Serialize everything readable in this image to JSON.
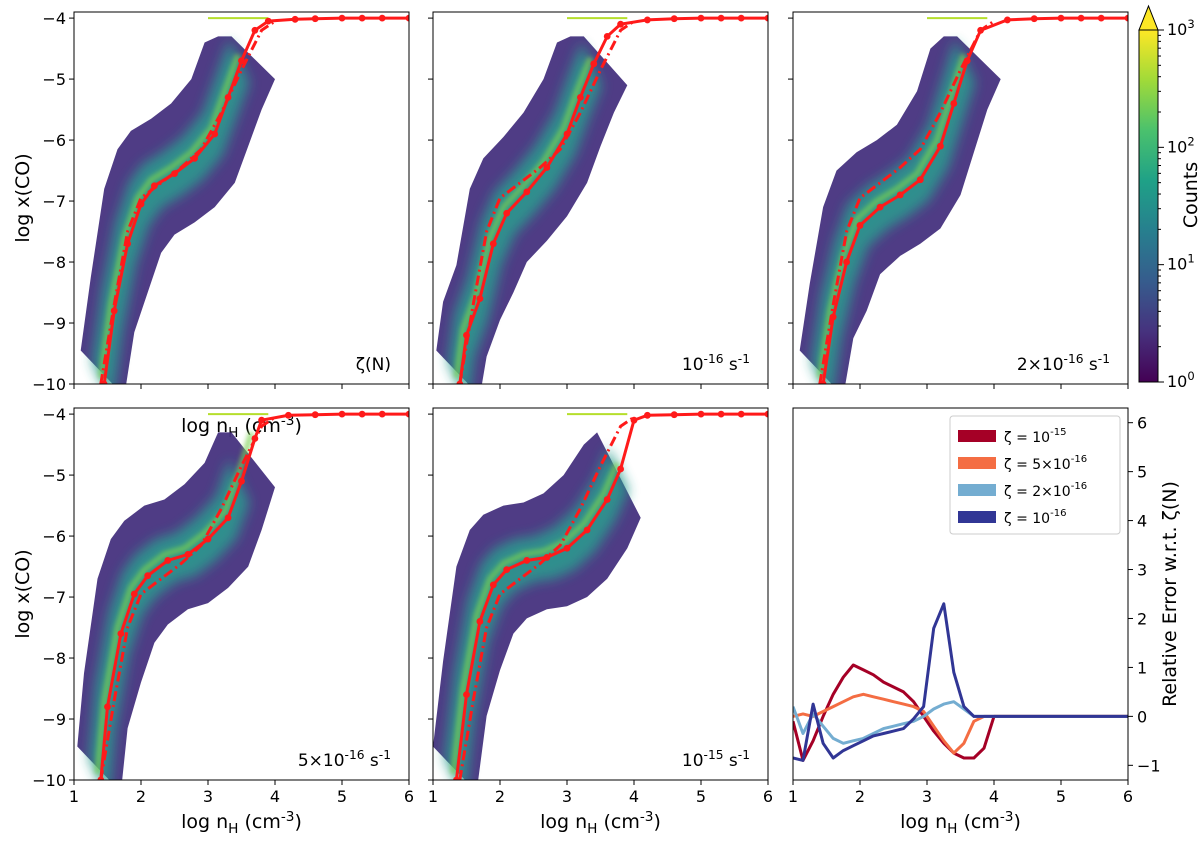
{
  "figure": {
    "colorbar": {
      "label": "Counts",
      "ticks": [
        {
          "value": 1,
          "label": "10^0"
        },
        {
          "value": 10,
          "label": "10^1"
        },
        {
          "value": 100,
          "label": "10^2"
        },
        {
          "value": 1000,
          "label": "10^3"
        }
      ],
      "colormap": [
        "#440154",
        "#46327e",
        "#365c8d",
        "#277f8e",
        "#1fa187",
        "#4ac16d",
        "#a0da39",
        "#fde725"
      ],
      "extend_color": "#fde725"
    },
    "colors": {
      "red": "#ff1a1a",
      "zeta_1e-15": "#a50026",
      "zeta_5e-16": "#f46d43",
      "zeta_2e-16": "#74add1",
      "zeta_1e-16": "#313695"
    }
  },
  "chart_data": [
    {
      "type": "heatmap",
      "panel": "top-left",
      "annotation": "ζ(N)",
      "xlabel": "log n_H (cm^-3)",
      "ylabel": "log x(CO)",
      "xlim": [
        1,
        6
      ],
      "ylim": [
        -10,
        -3.9
      ],
      "xticks": [
        1,
        2,
        3,
        4,
        5,
        6
      ],
      "yticks": [
        -10,
        -9,
        -8,
        -7,
        -6,
        -5,
        -4
      ],
      "series": [
        {
          "name": "solid",
          "style": "solid",
          "x": [
            1.45,
            1.6,
            1.8,
            2.0,
            2.2,
            2.5,
            2.8,
            3.1,
            3.3,
            3.5,
            3.7,
            3.9,
            4.3,
            4.6,
            5.0,
            5.3,
            5.6,
            6.0
          ],
          "y": [
            -10,
            -8.8,
            -7.7,
            -7.05,
            -6.75,
            -6.55,
            -6.3,
            -5.9,
            -5.3,
            -4.7,
            -4.2,
            -4.05,
            -4.02,
            -4.01,
            -4.0,
            -4.0,
            -4.0,
            -4.0
          ]
        },
        {
          "name": "dashdot",
          "style": "dashdot",
          "x": [
            1.4,
            1.6,
            1.8,
            2.0,
            2.3,
            2.6,
            2.9,
            3.2,
            3.5,
            3.8,
            4.0
          ],
          "y": [
            -10,
            -8.7,
            -7.5,
            -6.95,
            -6.7,
            -6.45,
            -6.15,
            -5.55,
            -4.85,
            -4.2,
            -4.05
          ]
        }
      ]
    },
    {
      "type": "heatmap",
      "panel": "top-middle",
      "annotation": "10^-16 s^-1",
      "xlabel": "",
      "ylabel": "",
      "xlim": [
        1,
        6
      ],
      "ylim": [
        -10,
        -3.9
      ],
      "xticks": [
        1,
        2,
        3,
        4,
        5,
        6
      ],
      "yticks": [
        -10,
        -9,
        -8,
        -7,
        -6,
        -5,
        -4
      ],
      "series": [
        {
          "name": "solid",
          "style": "solid",
          "x": [
            1.4,
            1.5,
            1.7,
            1.9,
            2.1,
            2.4,
            2.7,
            3.0,
            3.2,
            3.4,
            3.6,
            3.8,
            4.2,
            4.6,
            5.0,
            5.3,
            5.6,
            6.0
          ],
          "y": [
            -10,
            -9.2,
            -8.6,
            -7.7,
            -7.2,
            -6.85,
            -6.45,
            -5.9,
            -5.3,
            -4.75,
            -4.3,
            -4.1,
            -4.03,
            -4.01,
            -4.0,
            -4.0,
            -4.0,
            -4.0
          ]
        },
        {
          "name": "dashdot",
          "style": "dashdot",
          "x": [
            1.4,
            1.6,
            1.8,
            2.0,
            2.3,
            2.6,
            2.9,
            3.2,
            3.5,
            3.8,
            4.0
          ],
          "y": [
            -10,
            -8.7,
            -7.5,
            -6.95,
            -6.7,
            -6.45,
            -6.15,
            -5.55,
            -4.85,
            -4.2,
            -4.05
          ]
        }
      ]
    },
    {
      "type": "heatmap",
      "panel": "top-right",
      "annotation": "2×10^-16 s^-1",
      "xlabel": "",
      "ylabel": "",
      "xlim": [
        1,
        6
      ],
      "ylim": [
        -10,
        -3.9
      ],
      "xticks": [
        1,
        2,
        3,
        4,
        5,
        6
      ],
      "yticks": [
        -10,
        -9,
        -8,
        -7,
        -6,
        -5,
        -4
      ],
      "series": [
        {
          "name": "solid",
          "style": "solid",
          "x": [
            1.45,
            1.6,
            1.8,
            2.0,
            2.3,
            2.6,
            2.9,
            3.2,
            3.4,
            3.6,
            3.8,
            4.2,
            4.6,
            5.0,
            5.3,
            5.6,
            6.0
          ],
          "y": [
            -10,
            -8.9,
            -8.0,
            -7.4,
            -7.1,
            -6.9,
            -6.65,
            -6.1,
            -5.4,
            -4.7,
            -4.2,
            -4.03,
            -4.01,
            -4.0,
            -4.0,
            -4.0,
            -4.0
          ]
        },
        {
          "name": "dashdot",
          "style": "dashdot",
          "x": [
            1.4,
            1.6,
            1.8,
            2.0,
            2.3,
            2.6,
            2.9,
            3.2,
            3.5,
            3.8,
            4.0
          ],
          "y": [
            -10,
            -8.7,
            -7.5,
            -6.95,
            -6.7,
            -6.45,
            -6.15,
            -5.55,
            -4.85,
            -4.2,
            -4.05
          ]
        }
      ]
    },
    {
      "type": "heatmap",
      "panel": "bottom-left",
      "annotation": "5×10^-16 s^-1",
      "xlabel": "log n_H (cm^-3)",
      "ylabel": "log x(CO)",
      "xlim": [
        1,
        6
      ],
      "ylim": [
        -10,
        -3.9
      ],
      "xticks": [
        1,
        2,
        3,
        4,
        5,
        6
      ],
      "yticks": [
        -10,
        -9,
        -8,
        -7,
        -6,
        -5,
        -4
      ],
      "series": [
        {
          "name": "solid",
          "style": "solid",
          "x": [
            1.4,
            1.5,
            1.7,
            1.9,
            2.1,
            2.4,
            2.7,
            3.0,
            3.3,
            3.5,
            3.7,
            3.8,
            4.2,
            4.6,
            5.0,
            5.3,
            5.6,
            6.0
          ],
          "y": [
            -10,
            -8.8,
            -7.6,
            -6.95,
            -6.65,
            -6.4,
            -6.3,
            -6.05,
            -5.7,
            -5.1,
            -4.4,
            -4.1,
            -4.02,
            -4.01,
            -4.0,
            -4.0,
            -4.0,
            -4.0
          ]
        },
        {
          "name": "dashdot",
          "style": "dashdot",
          "x": [
            1.4,
            1.6,
            1.8,
            2.0,
            2.3,
            2.6,
            2.9,
            3.2,
            3.5,
            3.8,
            4.0
          ],
          "y": [
            -10,
            -8.7,
            -7.5,
            -6.95,
            -6.7,
            -6.45,
            -6.15,
            -5.55,
            -4.85,
            -4.2,
            -4.05
          ]
        }
      ]
    },
    {
      "type": "heatmap",
      "panel": "bottom-middle",
      "annotation": "10^-15 s^-1",
      "xlabel": "log n_H (cm^-3)",
      "ylabel": "",
      "xlim": [
        1,
        6
      ],
      "ylim": [
        -10,
        -3.9
      ],
      "xticks": [
        1,
        2,
        3,
        4,
        5,
        6
      ],
      "yticks": [
        -10,
        -9,
        -8,
        -7,
        -6,
        -5,
        -4
      ],
      "series": [
        {
          "name": "solid",
          "style": "solid",
          "x": [
            1.35,
            1.5,
            1.7,
            1.9,
            2.1,
            2.4,
            2.7,
            3.0,
            3.3,
            3.6,
            3.8,
            4.0,
            4.2,
            4.6,
            5.0,
            5.3,
            5.6,
            6.0
          ],
          "y": [
            -10,
            -8.6,
            -7.4,
            -6.8,
            -6.55,
            -6.4,
            -6.35,
            -6.2,
            -5.9,
            -5.4,
            -4.9,
            -4.1,
            -4.02,
            -4.01,
            -4.0,
            -4.0,
            -4.0,
            -4.0
          ]
        },
        {
          "name": "dashdot",
          "style": "dashdot",
          "x": [
            1.4,
            1.6,
            1.8,
            2.0,
            2.3,
            2.6,
            2.9,
            3.2,
            3.5,
            3.8,
            4.0
          ],
          "y": [
            -10,
            -8.7,
            -7.5,
            -6.95,
            -6.7,
            -6.45,
            -6.15,
            -5.55,
            -4.85,
            -4.2,
            -4.05
          ]
        }
      ]
    },
    {
      "type": "line",
      "panel": "bottom-right",
      "xlabel": "log n_H (cm^-3)",
      "ylabel": "Relative Error w.r.t. ζ(N)",
      "xlim": [
        1,
        6
      ],
      "ylim": [
        -1.3,
        6.3
      ],
      "xticks": [
        1,
        2,
        3,
        4,
        5,
        6
      ],
      "yticks": [
        -1,
        0,
        1,
        2,
        3,
        4,
        5,
        6
      ],
      "legend": "top-right",
      "x": [
        1.0,
        1.15,
        1.3,
        1.45,
        1.6,
        1.75,
        1.9,
        2.05,
        2.2,
        2.35,
        2.5,
        2.65,
        2.8,
        2.95,
        3.1,
        3.25,
        3.4,
        3.55,
        3.7,
        3.85,
        4.0,
        4.2,
        4.5,
        5.0,
        5.5,
        6.0
      ],
      "series": [
        {
          "name": "ζ = 10^-15",
          "color_key": "zeta_1e-15",
          "values": [
            -0.1,
            -0.9,
            -0.5,
            0.0,
            0.45,
            0.8,
            1.05,
            0.95,
            0.85,
            0.7,
            0.6,
            0.5,
            0.3,
            0.0,
            -0.3,
            -0.55,
            -0.75,
            -0.85,
            -0.85,
            -0.65,
            0.0,
            0.0,
            0.0,
            0.0,
            0.0,
            0.0
          ]
        },
        {
          "name": "ζ = 5×10^-16",
          "color_key": "zeta_5e-16",
          "values": [
            0.0,
            0.05,
            0.0,
            0.1,
            0.2,
            0.3,
            0.4,
            0.45,
            0.4,
            0.35,
            0.3,
            0.25,
            0.2,
            0.1,
            -0.2,
            -0.5,
            -0.75,
            -0.55,
            -0.1,
            0.0,
            0.0,
            0.0,
            0.0,
            0.0,
            0.0,
            0.0
          ]
        },
        {
          "name": "ζ = 2×10^-16",
          "color_key": "zeta_2e-16",
          "values": [
            0.2,
            -0.35,
            0.05,
            -0.2,
            -0.45,
            -0.55,
            -0.5,
            -0.45,
            -0.35,
            -0.25,
            -0.2,
            -0.15,
            -0.1,
            0.0,
            0.15,
            0.25,
            0.3,
            0.15,
            0.0,
            0.0,
            0.0,
            0.0,
            0.0,
            0.0,
            0.0,
            0.0
          ]
        },
        {
          "name": "ζ = 10^-16",
          "color_key": "zeta_1e-16",
          "values": [
            -0.85,
            -0.9,
            0.25,
            -0.55,
            -0.85,
            -0.7,
            -0.6,
            -0.5,
            -0.4,
            -0.35,
            -0.3,
            -0.25,
            -0.05,
            0.2,
            1.8,
            2.3,
            0.9,
            0.2,
            0.0,
            0.0,
            0.0,
            0.0,
            0.0,
            0.0,
            0.0,
            0.0
          ]
        }
      ]
    }
  ]
}
